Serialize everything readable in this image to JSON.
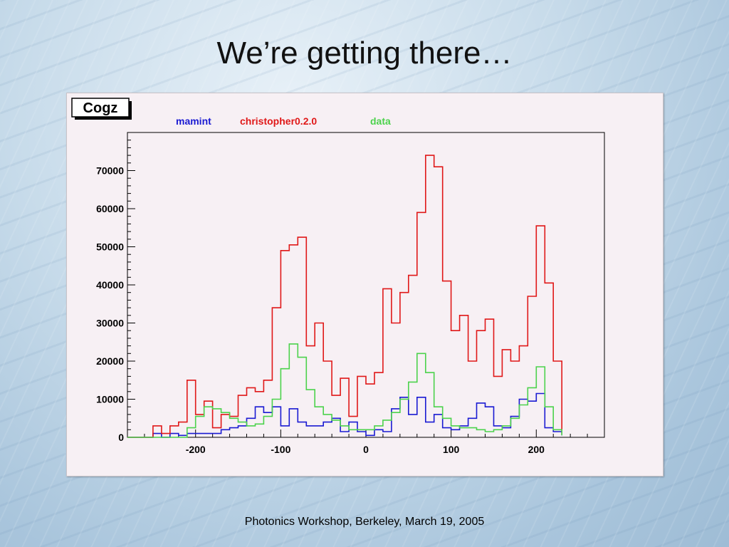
{
  "slide": {
    "title": "We’re getting there…",
    "footer": "Photonics Workshop, Berkeley, March 19, 2005"
  },
  "chart_data": {
    "type": "line",
    "style": "step-histogram",
    "title": "Cogz",
    "xlim": [
      -280,
      280
    ],
    "ylim": [
      0,
      80000
    ],
    "x_ticks": [
      -200,
      -100,
      0,
      100,
      200
    ],
    "x_tick_labels": [
      "-200",
      "-100",
      "0",
      "100",
      "200"
    ],
    "y_ticks": [
      0,
      10000,
      20000,
      30000,
      40000,
      50000,
      60000,
      70000
    ],
    "y_tick_labels": [
      "0",
      "10000",
      "20000",
      "30000",
      "40000",
      "50000",
      "60000",
      "70000"
    ],
    "grid": false,
    "legend_position": "top",
    "bin_edges": [
      -250,
      -240,
      -230,
      -220,
      -210,
      -200,
      -190,
      -180,
      -170,
      -160,
      -150,
      -140,
      -130,
      -120,
      -110,
      -100,
      -90,
      -80,
      -70,
      -60,
      -50,
      -40,
      -30,
      -20,
      -10,
      0,
      10,
      20,
      30,
      40,
      50,
      60,
      70,
      80,
      90,
      100,
      110,
      120,
      130,
      140,
      150,
      160,
      170,
      180,
      190,
      200,
      210,
      220,
      230
    ],
    "series": [
      {
        "name": "mamint",
        "color": "#1a1ad2",
        "values": [
          1000,
          0,
          1000,
          500,
          1000,
          1000,
          1000,
          1000,
          2000,
          2500,
          3000,
          5000,
          8000,
          6500,
          8000,
          3000,
          7500,
          4000,
          3000,
          3000,
          4000,
          5000,
          1500,
          4000,
          1500,
          500,
          2000,
          1500,
          7500,
          10500,
          6000,
          10500,
          4000,
          6000,
          2500,
          2000,
          3000,
          5000,
          9000,
          8000,
          3000,
          2500,
          5500,
          10000,
          9500,
          11500,
          2500,
          1500,
          500
        ]
      },
      {
        "name": "christopher0.2.0",
        "color": "#e01818",
        "values": [
          3000,
          1000,
          3000,
          4000,
          15000,
          6000,
          9500,
          2500,
          6000,
          5500,
          11000,
          13000,
          12000,
          15000,
          34000,
          49000,
          50500,
          52500,
          24000,
          30000,
          20000,
          11000,
          15500,
          5500,
          16000,
          14000,
          17000,
          39000,
          30000,
          38000,
          42500,
          59000,
          74000,
          71000,
          41000,
          28000,
          32000,
          20000,
          28000,
          31000,
          16000,
          23000,
          20000,
          24000,
          37000,
          55500,
          40500,
          20000,
          1000
        ]
      },
      {
        "name": "data",
        "color": "#4cd24c",
        "values": [
          0,
          0,
          0,
          0,
          2500,
          5500,
          8000,
          7500,
          6500,
          5000,
          4000,
          3000,
          3500,
          5500,
          10000,
          18000,
          24500,
          21000,
          12500,
          8000,
          6000,
          4500,
          3000,
          2000,
          2000,
          2000,
          3000,
          4500,
          6500,
          10000,
          14500,
          22000,
          17000,
          8000,
          5000,
          3000,
          2500,
          2500,
          2000,
          1500,
          2000,
          3000,
          5000,
          8500,
          13000,
          18500,
          8000,
          2000,
          500
        ]
      }
    ]
  }
}
